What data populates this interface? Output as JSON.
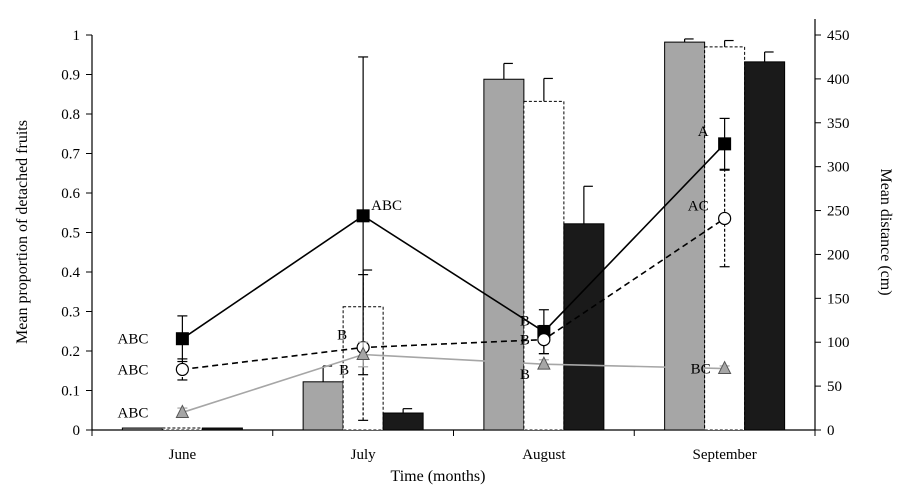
{
  "chart_data": {
    "type": "bar",
    "xlabel": "Time (months)",
    "ylabel": "Mean proportion of detached fruits",
    "y2label": "Mean distance (cm)",
    "categories": [
      "June",
      "July",
      "August",
      "September"
    ],
    "ylim": [
      0,
      1
    ],
    "y2lim": [
      0,
      450
    ],
    "yticks": [
      "0",
      "0.1",
      "0.2",
      "0.3",
      "0.4",
      "0.5",
      "0.6",
      "0.7",
      "0.8",
      "0.9",
      "1"
    ],
    "y2ticks": [
      "0",
      "50",
      "100",
      "150",
      "200",
      "250",
      "300",
      "350",
      "400",
      "450"
    ],
    "legend": "none",
    "grid": false,
    "bar_series": [
      {
        "fill": "#a6a6a6",
        "stroke": "#000000",
        "dashed": false,
        "values": [
          0.005,
          0.122,
          0.888,
          0.982
        ],
        "errors": [
          0.0,
          0.04,
          0.04,
          0.008
        ]
      },
      {
        "fill": "#ffffff",
        "stroke": "#000000",
        "dashed": true,
        "values": [
          0.005,
          0.312,
          0.832,
          0.97
        ],
        "errors": [
          0.0,
          0.093,
          0.058,
          0.016
        ]
      },
      {
        "fill": "#1a1a1a",
        "stroke": "#000000",
        "dashed": false,
        "values": [
          0.005,
          0.043,
          0.522,
          0.932
        ],
        "errors": [
          0.0,
          0.011,
          0.095,
          0.025
        ]
      }
    ],
    "line_series": [
      {
        "color": "#000000",
        "dash": "none",
        "marker": "square",
        "marker_fill": "#000000",
        "values": [
          104,
          244,
          112,
          326
        ],
        "errors": [
          26,
          181,
          25,
          29
        ],
        "annotations": [
          "ABC",
          "ABC",
          "B",
          "A"
        ]
      },
      {
        "color": "#000000",
        "dash": "6,4",
        "marker": "circle",
        "marker_fill": "#ffffff",
        "values": [
          69,
          94,
          103,
          241
        ],
        "errors": [
          12,
          83,
          16,
          55
        ],
        "annotations": [
          "ABC",
          "B",
          "B",
          "AC"
        ]
      },
      {
        "color": "#a6a6a6",
        "dash": "none",
        "marker": "triangle",
        "marker_fill": "#a6a6a6",
        "values": [
          20,
          86,
          75,
          70
        ],
        "errors": [
          5,
          14,
          5,
          3
        ],
        "annotations": [
          "ABC",
          "B",
          "B",
          "BC"
        ]
      }
    ]
  }
}
